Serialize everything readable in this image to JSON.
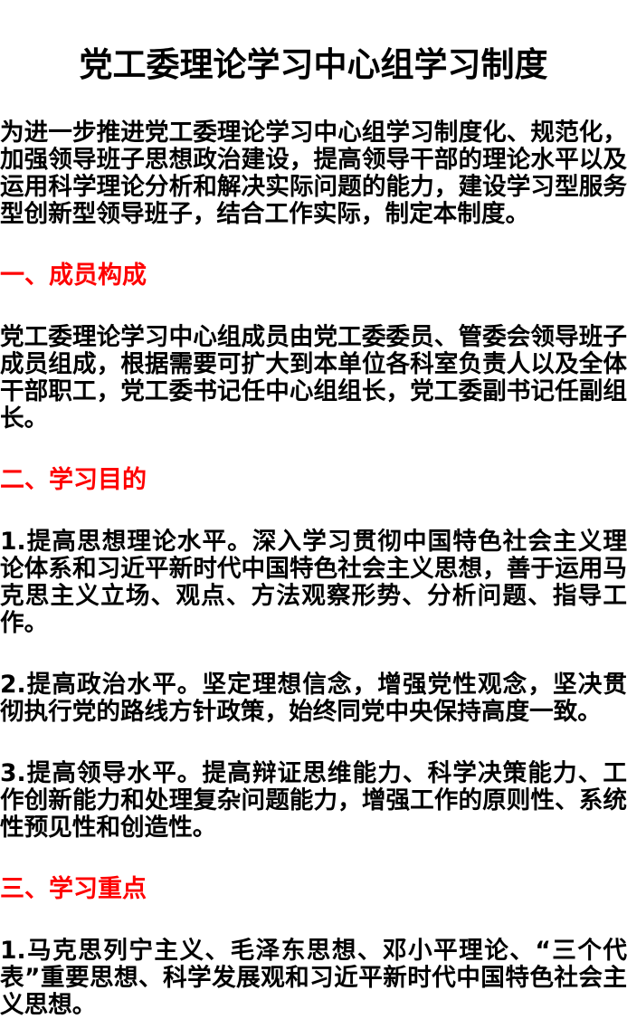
{
  "page": {
    "background_color": "#ffffff",
    "text_color": "#000000",
    "heading_color": "#fe0000"
  },
  "document": {
    "title": "党工委理论学习中心组学习制度",
    "intro": "为进一步推进党工委理论学习中心组学习制度化、规范化，加强领导班子思想政治建设，提高领导干部的理论水平以及运用科学理论分析和解决实际问题的能力，建设学习型服务型创新型领导班子，结合工作实际，制定本制度。",
    "sections": [
      {
        "heading": "一、成员构成",
        "paragraphs": [
          "党工委理论学习中心组成员由党工委委员、管委会领导班子成员组成，根据需要可扩大到本单位各科室负责人以及全体干部职工，党工委书记任中心组组长，党工委副书记任副组长。"
        ]
      },
      {
        "heading": "二、学习目的",
        "paragraphs": [
          "1.提高思想理论水平。深入学习贯彻中国特色社会主义理论体系和习近平新时代中国特色社会主义思想，善于运用马克思主义立场、观点、方法观察形势、分析问题、指导工作。",
          "2.提高政治水平。坚定理想信念，增强党性观念，坚决贯彻执行党的路线方针政策，始终同党中央保持高度一致。",
          "3.提高领导水平。提高辩证思维能力、科学决策能力、工作创新能力和处理复杂问题能力，增强工作的原则性、系统性预见性和创造性。"
        ]
      },
      {
        "heading": "三、学习重点",
        "paragraphs": [
          "1.马克思列宁主义、毛泽东思想、邓小平理论、“三个代表”重要思想、科学发展观和习近平新时代中国特色社会主义思想。"
        ]
      }
    ]
  }
}
